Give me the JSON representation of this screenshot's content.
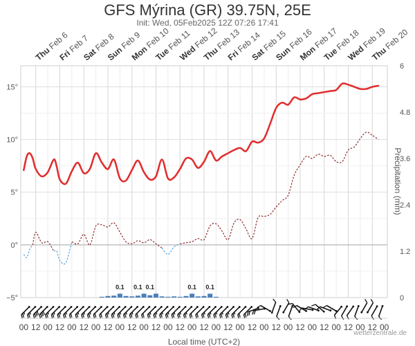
{
  "header": {
    "title": "GFS Mýrina (GR) 39.75N, 25E",
    "subtitle": "Init: Wed, 05Feb2025 12Z 07:26 17:41"
  },
  "footer": {
    "xaxis_title": "Local time (UTC+2)",
    "credit": "wetterzentrale.de",
    "right_axis_title": "Precipitation (mm)"
  },
  "chart_data": {
    "type": "line",
    "title": "GFS Mýrina (GR) 39.75N, 25E",
    "subtitle": "Init: Wed, 05Feb2025 12Z 07:26 17:41",
    "xlabel": "Local time (UTC+2)",
    "ylabel_right": "Precipitation (mm)",
    "x_unit": "hours after Thu Feb 6 00:00 local",
    "xlim": [
      -15,
      351
    ],
    "days": [
      {
        "dow": "Thu",
        "date": "Feb 6"
      },
      {
        "dow": "Fri",
        "date": "Feb 7"
      },
      {
        "dow": "Sat",
        "date": "Feb 8"
      },
      {
        "dow": "Sun",
        "date": "Feb 9"
      },
      {
        "dow": "Mon",
        "date": "Feb 10"
      },
      {
        "dow": "Tue",
        "date": "Feb 11"
      },
      {
        "dow": "Wed",
        "date": "Feb 12"
      },
      {
        "dow": "Thu",
        "date": "Feb 13"
      },
      {
        "dow": "Fri",
        "date": "Feb 14"
      },
      {
        "dow": "Sat",
        "date": "Feb 15"
      },
      {
        "dow": "Sun",
        "date": "Feb 16"
      },
      {
        "dow": "Mon",
        "date": "Feb 17"
      },
      {
        "dow": "Tue",
        "date": "Feb 18"
      },
      {
        "dow": "Wed",
        "date": "Feb 19"
      },
      {
        "dow": "Thu",
        "date": "Feb 20"
      }
    ],
    "hour_ticks": [
      "00",
      "12",
      "00",
      "12",
      "00",
      "12",
      "00",
      "12",
      "00",
      "12",
      "00",
      "12",
      "00",
      "12",
      "00",
      "12",
      "00",
      "12",
      "00",
      "12",
      "00",
      "12",
      "00",
      "12",
      "00",
      "12",
      "00",
      "12",
      "00",
      "12",
      "00"
    ],
    "y_left": {
      "min": -5,
      "max": 17,
      "ticks": [
        -5,
        0,
        5,
        10,
        15
      ],
      "tick_labels": [
        "−5°",
        "0°",
        "5°",
        "10°",
        "15°"
      ]
    },
    "y_right": {
      "min": 0,
      "max": 6,
      "ticks": [
        0,
        1.2,
        2.4,
        3.6,
        4.8,
        6
      ],
      "tick_labels": [
        "0",
        "1.2",
        "2.4",
        "3.6",
        "4.8",
        "6"
      ]
    },
    "grid": true,
    "series": [
      {
        "kind": "temperature",
        "color": "#e03030",
        "x": [
          -12,
          -9,
          -6,
          -3,
          0,
          6,
          12,
          18,
          21,
          24,
          30,
          36,
          42,
          48,
          54,
          60,
          66,
          72,
          78,
          84,
          90,
          96,
          102,
          108,
          114,
          120,
          126,
          132,
          138,
          144,
          150,
          156,
          162,
          168,
          174,
          180,
          186,
          192,
          198,
          204,
          210,
          216,
          222,
          228,
          234,
          240,
          246,
          252,
          258,
          264,
          270,
          276,
          282,
          288,
          294,
          300,
          306,
          312,
          318,
          324,
          330,
          336,
          342
        ],
        "values": [
          7.1,
          8.4,
          8.7,
          8.2,
          7.2,
          6.5,
          6.9,
          8.1,
          7.4,
          6.2,
          5.8,
          7.0,
          7.8,
          6.8,
          7.2,
          8.7,
          7.8,
          7.2,
          8.1,
          6.3,
          6.1,
          7.1,
          8.0,
          6.9,
          6.2,
          6.5,
          8.1,
          6.3,
          6.4,
          7.2,
          8.2,
          8.1,
          7.3,
          7.9,
          8.9,
          8.0,
          8.4,
          8.7,
          9.0,
          9.2,
          8.9,
          9.8,
          9.7,
          10.1,
          11.5,
          13.0,
          13.5,
          13.3,
          14.0,
          13.8,
          13.9,
          14.3,
          14.4,
          14.5,
          14.6,
          14.7,
          15.3,
          15.2,
          15.0,
          14.8,
          14.8,
          15.0,
          15.1
        ]
      },
      {
        "kind": "dew_point",
        "color_above_0": "#8b2a2a",
        "color_below_0": "#5aa0d8",
        "x": [
          -12,
          -9,
          -6,
          -3,
          0,
          6,
          12,
          18,
          21,
          24,
          30,
          36,
          42,
          48,
          54,
          60,
          66,
          72,
          78,
          84,
          90,
          96,
          102,
          108,
          114,
          120,
          126,
          132,
          138,
          144,
          150,
          156,
          162,
          168,
          174,
          180,
          186,
          192,
          198,
          204,
          210,
          216,
          222,
          228,
          234,
          240,
          246,
          252,
          258,
          264,
          270,
          276,
          282,
          288,
          294,
          300,
          306,
          312,
          318,
          324,
          330,
          336,
          342
        ],
        "values": [
          -0.9,
          -1.2,
          -0.4,
          0.0,
          1.2,
          0.2,
          0.3,
          -0.6,
          -0.6,
          -1.5,
          -1.7,
          0.3,
          0.1,
          1.0,
          0.0,
          1.8,
          1.9,
          1.7,
          2.1,
          1.2,
          0.3,
          0.1,
          0.4,
          0.2,
          0.5,
          0.1,
          -0.3,
          -0.9,
          -0.2,
          0.1,
          0.2,
          0.3,
          0.6,
          0.5,
          1.8,
          2.0,
          1.3,
          0.5,
          2.1,
          2.4,
          1.5,
          0.6,
          2.6,
          2.7,
          2.9,
          3.6,
          4.2,
          4.7,
          6.6,
          7.6,
          8.4,
          8.2,
          8.6,
          8.4,
          8.5,
          7.9,
          7.9,
          9.0,
          9.3,
          10.1,
          10.7,
          10.4,
          10.0
        ]
      },
      {
        "kind": "precipitation",
        "type": "bar",
        "color": "#4a7fb8",
        "axis": "right",
        "x": [
          66,
          72,
          78,
          84,
          90,
          96,
          102,
          108,
          114,
          120,
          126,
          132,
          138,
          144,
          150,
          156,
          162,
          168,
          174,
          180
        ],
        "values": [
          0.02,
          0.04,
          0.05,
          0.1,
          0.04,
          0.03,
          0.05,
          0.1,
          0.06,
          0.1,
          0.03,
          0.02,
          0.03,
          0.02,
          0.04,
          0.1,
          0.03,
          0.04,
          0.1,
          0.02
        ],
        "labels": [
          {
            "x": 84,
            "text": "0.1"
          },
          {
            "x": 102,
            "text": "0.1"
          },
          {
            "x": 114,
            "text": "0.1"
          },
          {
            "x": 156,
            "text": "0.1"
          },
          {
            "x": 174,
            "text": "0.1"
          }
        ]
      }
    ],
    "wind_barbs": [
      {
        "x": -9,
        "dir": 225,
        "kt": 15
      },
      {
        "x": -3,
        "dir": 225,
        "kt": 15
      },
      {
        "x": 3,
        "dir": 225,
        "kt": 20
      },
      {
        "x": 9,
        "dir": 225,
        "kt": 20
      },
      {
        "x": 15,
        "dir": 225,
        "kt": 15
      },
      {
        "x": 21,
        "dir": 225,
        "kt": 15
      },
      {
        "x": 27,
        "dir": 225,
        "kt": 15
      },
      {
        "x": 33,
        "dir": 225,
        "kt": 15
      },
      {
        "x": 39,
        "dir": 225,
        "kt": 10
      },
      {
        "x": 45,
        "dir": 225,
        "kt": 15
      },
      {
        "x": 51,
        "dir": 225,
        "kt": 15
      },
      {
        "x": 57,
        "dir": 225,
        "kt": 15
      },
      {
        "x": 63,
        "dir": 225,
        "kt": 10
      },
      {
        "x": 69,
        "dir": 225,
        "kt": 10
      },
      {
        "x": 75,
        "dir": 225,
        "kt": 15
      },
      {
        "x": 81,
        "dir": 225,
        "kt": 15
      },
      {
        "x": 87,
        "dir": 225,
        "kt": 15
      },
      {
        "x": 93,
        "dir": 225,
        "kt": 15
      },
      {
        "x": 99,
        "dir": 225,
        "kt": 15
      },
      {
        "x": 105,
        "dir": 225,
        "kt": 10
      },
      {
        "x": 111,
        "dir": 225,
        "kt": 10
      },
      {
        "x": 117,
        "dir": 225,
        "kt": 15
      },
      {
        "x": 123,
        "dir": 225,
        "kt": 15
      },
      {
        "x": 129,
        "dir": 225,
        "kt": 15
      },
      {
        "x": 135,
        "dir": 225,
        "kt": 15
      },
      {
        "x": 141,
        "dir": 225,
        "kt": 15
      },
      {
        "x": 147,
        "dir": 225,
        "kt": 15
      },
      {
        "x": 153,
        "dir": 225,
        "kt": 15
      },
      {
        "x": 159,
        "dir": 225,
        "kt": 10
      },
      {
        "x": 165,
        "dir": 225,
        "kt": 10
      },
      {
        "x": 171,
        "dir": 225,
        "kt": 15
      },
      {
        "x": 177,
        "dir": 225,
        "kt": 15
      },
      {
        "x": 183,
        "dir": 225,
        "kt": 15
      },
      {
        "x": 189,
        "dir": 225,
        "kt": 15
      },
      {
        "x": 195,
        "dir": 225,
        "kt": 15
      },
      {
        "x": 201,
        "dir": 225,
        "kt": 15
      },
      {
        "x": 207,
        "dir": 225,
        "kt": 10
      },
      {
        "x": 213,
        "dir": 225,
        "kt": 10
      },
      {
        "x": 219,
        "dir": 250,
        "kt": 10
      },
      {
        "x": 225,
        "dir": 260,
        "kt": 10
      },
      {
        "x": 231,
        "dir": 300,
        "kt": 5
      },
      {
        "x": 237,
        "dir": 20,
        "kt": 5
      },
      {
        "x": 243,
        "dir": 200,
        "kt": 5
      },
      {
        "x": 249,
        "dir": 30,
        "kt": 5
      },
      {
        "x": 255,
        "dir": 200,
        "kt": 5
      },
      {
        "x": 261,
        "dir": 320,
        "kt": 5
      },
      {
        "x": 267,
        "dir": 300,
        "kt": 5
      },
      {
        "x": 273,
        "dir": 280,
        "kt": 5
      },
      {
        "x": 279,
        "dir": 290,
        "kt": 5
      },
      {
        "x": 285,
        "dir": 310,
        "kt": 5
      },
      {
        "x": 291,
        "dir": 290,
        "kt": 5
      },
      {
        "x": 297,
        "dir": 300,
        "kt": 5
      },
      {
        "x": 303,
        "dir": 220,
        "kt": 5
      },
      {
        "x": 309,
        "dir": 210,
        "kt": 5
      },
      {
        "x": 315,
        "dir": 215,
        "kt": 5
      },
      {
        "x": 321,
        "dir": 200,
        "kt": 5
      },
      {
        "x": 327,
        "dir": 30,
        "kt": 5
      },
      {
        "x": 333,
        "dir": 30,
        "kt": 5
      },
      {
        "x": 339,
        "dir": 210,
        "kt": 5
      },
      {
        "x": 345,
        "dir": 200,
        "kt": 5
      }
    ]
  }
}
